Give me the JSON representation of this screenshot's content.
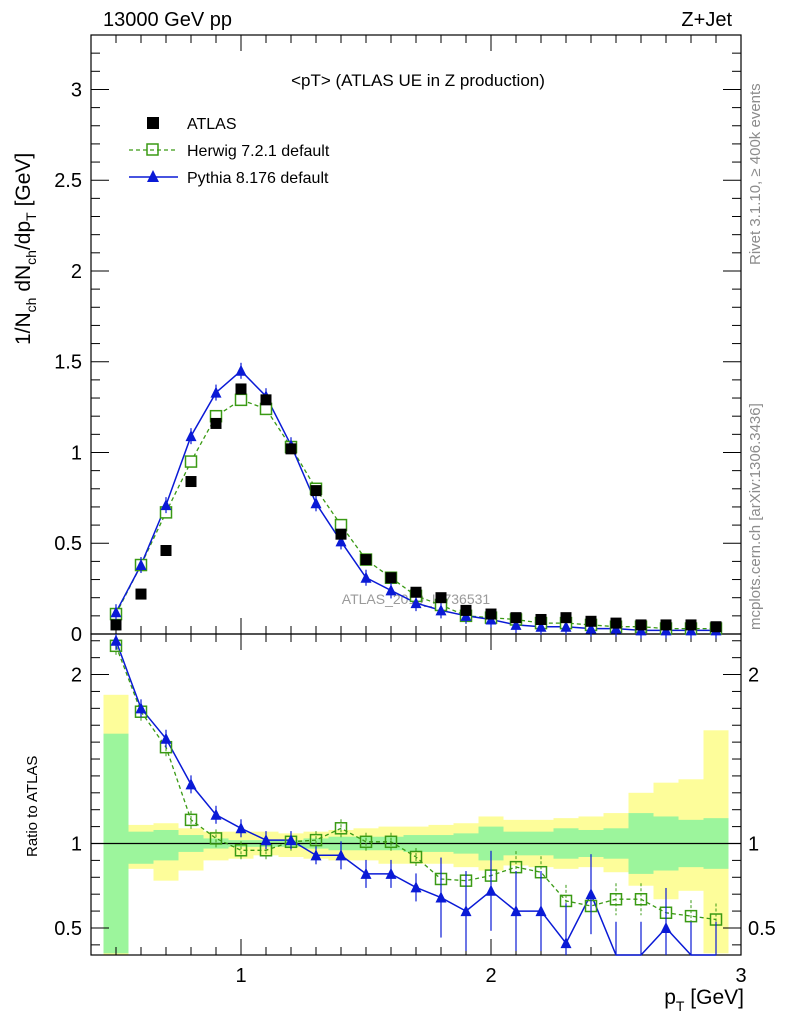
{
  "header": {
    "left": "13000 GeV pp",
    "right": "Z+Jet"
  },
  "side_text": {
    "rivet": "Rivet 3.1.10, ≥ 400k events",
    "mcplots": "mcplots.cern.ch [arXiv:1306.3436]"
  },
  "colors": {
    "atlas": "#000000",
    "herwig": "#3a9a14",
    "pythia": "#0a1ad6",
    "band_inner": "#9cf59c",
    "band_outer": "#fdfd9a",
    "watermark": "#9a9a9a"
  },
  "chart_data": {
    "type": "line",
    "title": "<pT> (ATLAS UE in Z production)",
    "xlabel": "p_T [GeV]",
    "ylabel": "1/N_ch dN_ch/dp_T [GeV]",
    "ratio_ylabel": "Ratio to ATLAS",
    "watermark": "ATLAS_2019_I1736531",
    "xlim": [
      0.4,
      3.0
    ],
    "ylim": [
      0,
      3.3
    ],
    "ratio_ylim": [
      0.34,
      2.24
    ],
    "x_ticks": [
      "1",
      "2",
      "3"
    ],
    "y_ticks": [
      "0",
      "0.5",
      "1",
      "1.5",
      "2",
      "2.5",
      "3"
    ],
    "ratio_y_ticks": [
      "0.5",
      "1",
      "2"
    ],
    "legend_position": "top-left",
    "x": [
      0.5,
      0.6,
      0.7,
      0.8,
      0.9,
      1.0,
      1.1,
      1.2,
      1.3,
      1.4,
      1.5,
      1.6,
      1.7,
      1.8,
      1.9,
      2.0,
      2.1,
      2.2,
      2.3,
      2.4,
      2.5,
      2.6,
      2.7,
      2.8,
      2.9
    ],
    "series": [
      {
        "name": "ATLAS",
        "values": [
          0.05,
          0.22,
          0.46,
          0.84,
          1.16,
          1.35,
          1.29,
          1.02,
          0.79,
          0.55,
          0.41,
          0.31,
          0.23,
          0.2,
          0.13,
          0.11,
          0.09,
          0.08,
          0.09,
          0.07,
          0.06,
          0.05,
          0.05,
          0.05,
          0.04
        ]
      },
      {
        "name": "Herwig 7.2.1 default",
        "values": [
          0.11,
          0.38,
          0.67,
          0.95,
          1.2,
          1.29,
          1.24,
          1.03,
          0.8,
          0.6,
          0.41,
          0.31,
          0.21,
          0.16,
          0.1,
          0.09,
          0.08,
          0.06,
          0.06,
          0.05,
          0.04,
          0.04,
          0.03,
          0.03,
          0.03
        ]
      },
      {
        "name": "Pythia 8.176 default",
        "values": [
          0.12,
          0.38,
          0.71,
          1.09,
          1.33,
          1.45,
          1.31,
          1.04,
          0.72,
          0.51,
          0.31,
          0.24,
          0.17,
          0.13,
          0.1,
          0.08,
          0.05,
          0.04,
          0.04,
          0.03,
          0.03,
          0.02,
          0.02,
          0.02,
          0.02
        ]
      }
    ],
    "ratio_series": [
      {
        "name": "Herwig 7.2.1 default",
        "values": [
          2.17,
          1.78,
          1.57,
          1.14,
          1.03,
          0.96,
          0.96,
          1.01,
          1.02,
          1.09,
          1.01,
          1.01,
          0.92,
          0.79,
          0.78,
          0.81,
          0.86,
          0.83,
          0.66,
          0.63,
          0.67,
          0.67,
          0.59,
          0.57,
          0.55
        ]
      },
      {
        "name": "Pythia 8.176 default",
        "values": [
          2.2,
          1.8,
          1.62,
          1.35,
          1.17,
          1.09,
          1.02,
          1.02,
          0.93,
          0.93,
          0.82,
          0.82,
          0.74,
          0.68,
          0.6,
          0.72,
          0.6,
          0.6,
          0.41,
          0.7,
          0.3,
          0.3,
          0.5,
          0.3,
          0.3
        ]
      }
    ],
    "ratio_band_inner": [
      [
        0.35,
        1.65
      ],
      [
        0.88,
        1.07
      ],
      [
        0.9,
        1.08
      ],
      [
        0.95,
        1.05
      ],
      [
        0.97,
        1.03
      ],
      [
        0.98,
        1.02
      ],
      [
        0.98,
        1.02
      ],
      [
        0.98,
        1.02
      ],
      [
        0.97,
        1.03
      ],
      [
        0.96,
        1.04
      ],
      [
        0.96,
        1.04
      ],
      [
        0.96,
        1.04
      ],
      [
        0.95,
        1.05
      ],
      [
        0.95,
        1.05
      ],
      [
        0.94,
        1.06
      ],
      [
        0.9,
        1.1
      ],
      [
        0.93,
        1.07
      ],
      [
        0.93,
        1.07
      ],
      [
        0.91,
        1.09
      ],
      [
        0.92,
        1.08
      ],
      [
        0.91,
        1.09
      ],
      [
        0.82,
        1.18
      ],
      [
        0.84,
        1.16
      ],
      [
        0.86,
        1.14
      ],
      [
        0.85,
        1.15
      ]
    ],
    "ratio_band_outer": [
      [
        0.34,
        1.88
      ],
      [
        0.85,
        1.11
      ],
      [
        0.78,
        1.12
      ],
      [
        0.84,
        1.09
      ],
      [
        0.9,
        1.07
      ],
      [
        0.91,
        1.07
      ],
      [
        0.93,
        1.07
      ],
      [
        0.92,
        1.06
      ],
      [
        0.91,
        1.07
      ],
      [
        0.9,
        1.08
      ],
      [
        0.9,
        1.09
      ],
      [
        0.88,
        1.1
      ],
      [
        0.88,
        1.1
      ],
      [
        0.88,
        1.11
      ],
      [
        0.86,
        1.12
      ],
      [
        0.84,
        1.16
      ],
      [
        0.87,
        1.14
      ],
      [
        0.86,
        1.14
      ],
      [
        0.85,
        1.15
      ],
      [
        0.86,
        1.16
      ],
      [
        0.83,
        1.18
      ],
      [
        0.75,
        1.3
      ],
      [
        0.67,
        1.36
      ],
      [
        0.72,
        1.38
      ],
      [
        0.35,
        1.67
      ]
    ]
  }
}
